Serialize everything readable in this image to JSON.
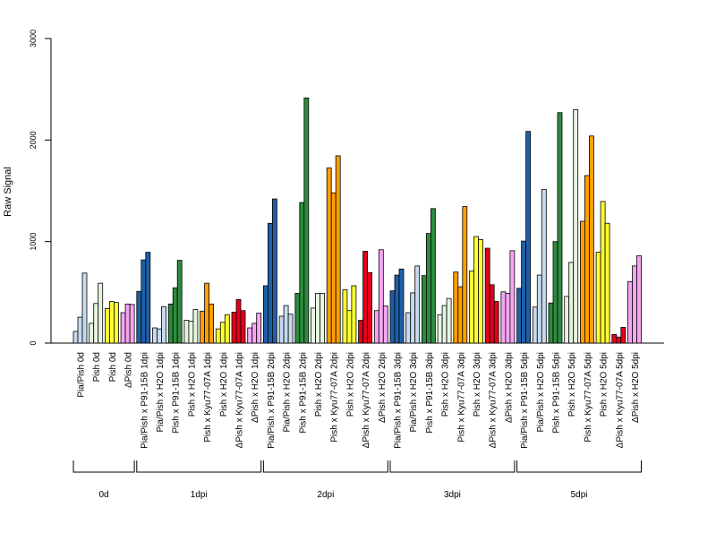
{
  "chart_data": {
    "type": "bar",
    "ylabel": "Raw Signal",
    "xlabel": "",
    "title": "",
    "ylim": [
      0,
      3000
    ],
    "yticks": [
      0,
      1000,
      2000,
      3000
    ],
    "grid": false,
    "legend": "none",
    "groups": [
      {
        "label": "0d",
        "categories": [
          "Pia/Pish 0d",
          "Pish 0d",
          "Pish 0d",
          "ΔPish 0d"
        ]
      },
      {
        "label": "1dpi",
        "categories": [
          "Pia/Pish x P91-15B 1dpi",
          "Pia/Pish x H2O 1dpi",
          "Pish x P91-15B 1dpi",
          "Pish x H2O 1dpi",
          "Pish x Kyu77-07A 1dpi",
          "Pish x H2O 1dpi",
          "ΔPish x Kyu77-07A 1dpi",
          "ΔPish x H2O 1dpi"
        ]
      },
      {
        "label": "2dpi",
        "categories": [
          "Pia/Pish x P91-15B 2dpi",
          "Pia/Pish x H2O 2dpi",
          "Pish x P91-15B 2dpi",
          "Pish x H2O 2dpi",
          "Pish x Kyu77-07A 2dpi",
          "Pish x H2O 2dpi",
          "ΔPish x Kyu77-07A 2dpi",
          "ΔPish x H2O 2dpi"
        ]
      },
      {
        "label": "3dpi",
        "categories": [
          "Pia/Pish x P91-15B 3dpi",
          "Pia/Pish x H2O 3dpi",
          "Pish x P91-15B 3dpi",
          "Pish x H2O 3dpi",
          "Pish x Kyu77-07A 3dpi",
          "Pish x H2O 3dpi",
          "ΔPish x Kyu77-07A 3dpi",
          "ΔPish x H2O 3dpi"
        ]
      },
      {
        "label": "5dpi",
        "categories": [
          "Pia/Pish x P91-15B 5dpi",
          "Pia/Pish x H2O 5dpi",
          "Pish x P91-15B 5dpi",
          "Pish x H2O 5dpi",
          "Pish x Kyu77-07A 5dpi",
          "Pish x H2O 5dpi",
          "ΔPish x Kyu77-07A 5dpi",
          "ΔPish x H2O 5dpi"
        ]
      }
    ],
    "categories": [
      {
        "color": "#c6dbef",
        "values": [
          115,
          255,
          690
        ]
      },
      {
        "color": "#e5f5e0",
        "values": [
          195,
          390,
          590
        ]
      },
      {
        "color": "#ffff33",
        "values": [
          340,
          410,
          400
        ]
      },
      {
        "color": "#f4a6f0",
        "values": [
          300,
          385,
          380
        ]
      },
      {
        "color": "#1f5fa8",
        "values": [
          510,
          820,
          895
        ]
      },
      {
        "color": "#c6dbef",
        "values": [
          150,
          140,
          360
        ]
      },
      {
        "color": "#2e8b3e",
        "values": [
          385,
          545,
          815
        ]
      },
      {
        "color": "#e5f5e0",
        "values": [
          225,
          215,
          330
        ]
      },
      {
        "color": "#ff9f00",
        "values": [
          315,
          590,
          385
        ]
      },
      {
        "color": "#ffff33",
        "values": [
          140,
          205,
          280
        ]
      },
      {
        "color": "#e4001b",
        "values": [
          305,
          430,
          320
        ]
      },
      {
        "color": "#f4a6f0",
        "values": [
          150,
          195,
          295
        ]
      },
      {
        "color": "#1f5fa8",
        "values": [
          565,
          1180,
          1420
        ]
      },
      {
        "color": "#c6dbef",
        "values": [
          265,
          370,
          285
        ]
      },
      {
        "color": "#2e8b3e",
        "values": [
          490,
          1385,
          2415
        ]
      },
      {
        "color": "#e5f5e0",
        "values": [
          345,
          490,
          490
        ]
      },
      {
        "color": "#ff9f00",
        "values": [
          1725,
          1480,
          1845
        ]
      },
      {
        "color": "#ffff33",
        "values": [
          525,
          320,
          565
        ]
      },
      {
        "color": "#e4001b",
        "values": [
          225,
          905,
          695
        ]
      },
      {
        "color": "#f4a6f0",
        "values": [
          320,
          920,
          365
        ]
      },
      {
        "color": "#1f5fa8",
        "values": [
          515,
          670,
          730
        ]
      },
      {
        "color": "#c6dbef",
        "values": [
          300,
          495,
          760
        ]
      },
      {
        "color": "#2e8b3e",
        "values": [
          665,
          1080,
          1325
        ]
      },
      {
        "color": "#e5f5e0",
        "values": [
          280,
          370,
          440
        ]
      },
      {
        "color": "#ff9f00",
        "values": [
          700,
          555,
          1345
        ]
      },
      {
        "color": "#ffff33",
        "values": [
          710,
          1050,
          1020
        ]
      },
      {
        "color": "#e4001b",
        "values": [
          935,
          575,
          410
        ]
      },
      {
        "color": "#f4a6f0",
        "values": [
          505,
          490,
          910
        ]
      },
      {
        "color": "#1f5fa8",
        "values": [
          540,
          1005,
          2085
        ]
      },
      {
        "color": "#c6dbef",
        "values": [
          355,
          670,
          1515
        ]
      },
      {
        "color": "#2e8b3e",
        "values": [
          395,
          1000,
          2270
        ]
      },
      {
        "color": "#e5f5e0",
        "values": [
          460,
          795,
          2300
        ]
      },
      {
        "color": "#ff9f00",
        "values": [
          1200,
          1650,
          2040
        ]
      },
      {
        "color": "#ffff33",
        "values": [
          895,
          1395,
          1180
        ]
      },
      {
        "color": "#e4001b",
        "values": [
          85,
          60,
          155
        ]
      },
      {
        "color": "#f4a6f0",
        "values": [
          605,
          760,
          860
        ]
      }
    ]
  }
}
